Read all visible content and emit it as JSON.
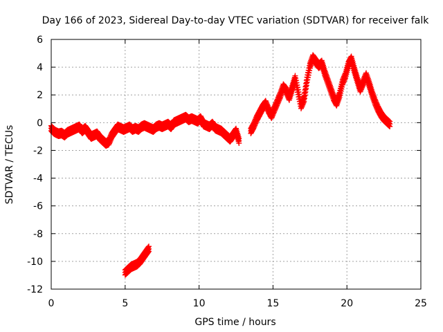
{
  "chart_data": {
    "type": "scatter",
    "title": "Day 166 of 2023, Sidereal Day-to-day VTEC variation (SDTVAR) for receiver falk",
    "xlabel": "GPS time / hours",
    "ylabel": "SDTVAR / TECUs",
    "xlim": [
      0,
      25
    ],
    "ylim": [
      -12,
      6
    ],
    "xticks": [
      0,
      5,
      10,
      15,
      20,
      25
    ],
    "yticks": [
      -12,
      -10,
      -8,
      -6,
      -4,
      -2,
      0,
      2,
      4,
      6
    ],
    "grid": true,
    "marker": "+",
    "color": "#ff0000",
    "series": [
      {
        "name": "SDTVAR",
        "points": [
          [
            0.0,
            -0.4
          ],
          [
            0.15,
            -0.6
          ],
          [
            0.3,
            -0.7
          ],
          [
            0.5,
            -0.8
          ],
          [
            0.7,
            -0.75
          ],
          [
            0.9,
            -0.9
          ],
          [
            1.1,
            -0.7
          ],
          [
            1.3,
            -0.6
          ],
          [
            1.5,
            -0.5
          ],
          [
            1.7,
            -0.4
          ],
          [
            1.9,
            -0.3
          ],
          [
            2.1,
            -0.6
          ],
          [
            2.3,
            -0.4
          ],
          [
            2.5,
            -0.7
          ],
          [
            2.7,
            -1.0
          ],
          [
            2.9,
            -0.9
          ],
          [
            3.1,
            -0.8
          ],
          [
            3.3,
            -1.1
          ],
          [
            3.5,
            -1.3
          ],
          [
            3.7,
            -1.5
          ],
          [
            3.9,
            -1.4
          ],
          [
            4.1,
            -0.9
          ],
          [
            4.3,
            -0.6
          ],
          [
            4.5,
            -0.3
          ],
          [
            4.7,
            -0.4
          ],
          [
            4.9,
            -0.5
          ],
          [
            5.1,
            -0.4
          ],
          [
            5.3,
            -0.3
          ],
          [
            5.5,
            -0.5
          ],
          [
            5.7,
            -0.4
          ],
          [
            5.9,
            -0.5
          ],
          [
            6.1,
            -0.3
          ],
          [
            6.3,
            -0.2
          ],
          [
            6.5,
            -0.3
          ],
          [
            6.7,
            -0.4
          ],
          [
            6.9,
            -0.5
          ],
          [
            7.1,
            -0.3
          ],
          [
            7.3,
            -0.2
          ],
          [
            7.5,
            -0.3
          ],
          [
            7.7,
            -0.2
          ],
          [
            7.9,
            -0.1
          ],
          [
            8.1,
            -0.3
          ],
          [
            8.3,
            0.0
          ],
          [
            8.5,
            0.1
          ],
          [
            8.7,
            0.2
          ],
          [
            8.9,
            0.3
          ],
          [
            9.1,
            0.4
          ],
          [
            9.3,
            0.2
          ],
          [
            9.5,
            0.3
          ],
          [
            9.7,
            0.2
          ],
          [
            9.9,
            0.1
          ],
          [
            10.1,
            0.3
          ],
          [
            10.3,
            -0.1
          ],
          [
            10.5,
            -0.2
          ],
          [
            10.7,
            -0.3
          ],
          [
            10.9,
            -0.1
          ],
          [
            11.1,
            -0.4
          ],
          [
            11.3,
            -0.5
          ],
          [
            11.5,
            -0.6
          ],
          [
            11.7,
            -0.8
          ],
          [
            11.9,
            -1.0
          ],
          [
            12.1,
            -1.2
          ],
          [
            12.3,
            -0.9
          ],
          [
            12.5,
            -0.6
          ],
          [
            12.7,
            -1.3
          ],
          [
            13.5,
            -0.6
          ],
          [
            13.7,
            -0.2
          ],
          [
            13.9,
            0.3
          ],
          [
            14.1,
            0.7
          ],
          [
            14.3,
            1.1
          ],
          [
            14.5,
            1.4
          ],
          [
            14.7,
            0.9
          ],
          [
            14.9,
            0.5
          ],
          [
            15.1,
            1.0
          ],
          [
            15.3,
            1.5
          ],
          [
            15.5,
            2.0
          ],
          [
            15.7,
            2.6
          ],
          [
            15.9,
            2.3
          ],
          [
            16.1,
            1.8
          ],
          [
            16.3,
            2.5
          ],
          [
            16.5,
            3.2
          ],
          [
            16.7,
            2.2
          ],
          [
            16.9,
            1.2
          ],
          [
            17.1,
            1.7
          ],
          [
            17.3,
            3.1
          ],
          [
            17.5,
            4.1
          ],
          [
            17.7,
            4.7
          ],
          [
            17.9,
            4.4
          ],
          [
            18.1,
            4.1
          ],
          [
            18.3,
            4.3
          ],
          [
            18.5,
            3.6
          ],
          [
            18.7,
            3.0
          ],
          [
            18.9,
            2.4
          ],
          [
            19.1,
            1.8
          ],
          [
            19.3,
            1.4
          ],
          [
            19.5,
            2.0
          ],
          [
            19.7,
            2.9
          ],
          [
            19.9,
            3.4
          ],
          [
            20.1,
            4.2
          ],
          [
            20.3,
            4.6
          ],
          [
            20.5,
            3.8
          ],
          [
            20.7,
            3.1
          ],
          [
            20.9,
            2.4
          ],
          [
            21.1,
            2.9
          ],
          [
            21.3,
            3.4
          ],
          [
            21.5,
            2.8
          ],
          [
            21.7,
            2.1
          ],
          [
            21.9,
            1.5
          ],
          [
            22.1,
            1.0
          ],
          [
            22.3,
            0.6
          ],
          [
            22.5,
            0.3
          ],
          [
            22.7,
            0.1
          ],
          [
            22.9,
            -0.1
          ],
          [
            5.0,
            -10.8
          ],
          [
            5.2,
            -10.6
          ],
          [
            5.4,
            -10.4
          ],
          [
            5.6,
            -10.3
          ],
          [
            5.8,
            -10.2
          ],
          [
            6.0,
            -10.0
          ],
          [
            6.2,
            -9.7
          ],
          [
            6.4,
            -9.4
          ],
          [
            6.6,
            -9.1
          ]
        ]
      }
    ]
  }
}
